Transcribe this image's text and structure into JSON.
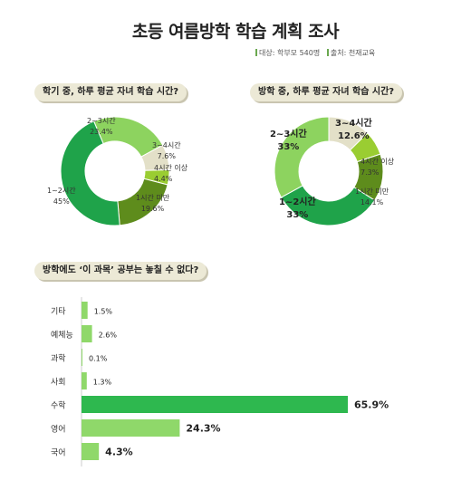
{
  "header": {
    "title": "초등 여름방학 학습 계획 조사",
    "source_target": "대상: 학부모 540명",
    "source_origin": "출처: 천재교육"
  },
  "colors": {
    "dark_green": "#1fa34a",
    "light_green": "#8dd35f",
    "beige": "#e3e0c8",
    "olive": "#5e8c1c",
    "lime": "#9acd32",
    "bar_green": "#2eb84f",
    "bar_light": "#8fd86a",
    "pill_bg": "#ece9d6"
  },
  "chart_data": [
    {
      "type": "pie",
      "title": "학기 중, 하루 평균 자녀 학습 시간?",
      "slices": [
        {
          "label": "2~3시간",
          "value": 23.4,
          "value_text": "23.4%",
          "color": "#8dd35f"
        },
        {
          "label": "3~4시간",
          "value": 7.6,
          "value_text": "7.6%",
          "color": "#e3e0c8"
        },
        {
          "label": "4시간 이상",
          "value": 4.4,
          "value_text": "4.4%",
          "color": "#9acd32"
        },
        {
          "label": "1시간 미만",
          "value": 19.6,
          "value_text": "19.6%",
          "color": "#5e8c1c"
        },
        {
          "label": "1~2시간",
          "value": 45,
          "value_text": "45%",
          "color": "#1fa34a"
        }
      ]
    },
    {
      "type": "pie",
      "title": "방학 중, 하루 평균 자녀 학습 시간?",
      "slices": [
        {
          "label": "3~4시간",
          "value": 12.6,
          "value_text": "12.6%",
          "color": "#e3e0c8"
        },
        {
          "label": "4시간 이상",
          "value": 7.3,
          "value_text": "7.3%",
          "color": "#9acd32"
        },
        {
          "label": "1시간 미만",
          "value": 14.1,
          "value_text": "14.1%",
          "color": "#5e8c1c"
        },
        {
          "label": "1~2시간",
          "value": 33,
          "value_text": "33%",
          "color": "#1fa34a"
        },
        {
          "label": "2~3시간",
          "value": 33,
          "value_text": "33%",
          "color": "#8dd35f"
        }
      ]
    },
    {
      "type": "bar",
      "orientation": "horizontal",
      "title": "방학에도 ‘이 과목’ 공부는 놓칠 수 없다?",
      "categories": [
        "기타",
        "예체능",
        "과학",
        "사회",
        "수학",
        "영어",
        "국어"
      ],
      "values": [
        1.5,
        2.6,
        0.1,
        1.3,
        65.9,
        24.3,
        4.3
      ],
      "value_labels": [
        "1.5%",
        "2.6%",
        "0.1%",
        "1.3%",
        "65.9%",
        "24.3%",
        "4.3%"
      ],
      "xlim": [
        0,
        100
      ]
    }
  ]
}
